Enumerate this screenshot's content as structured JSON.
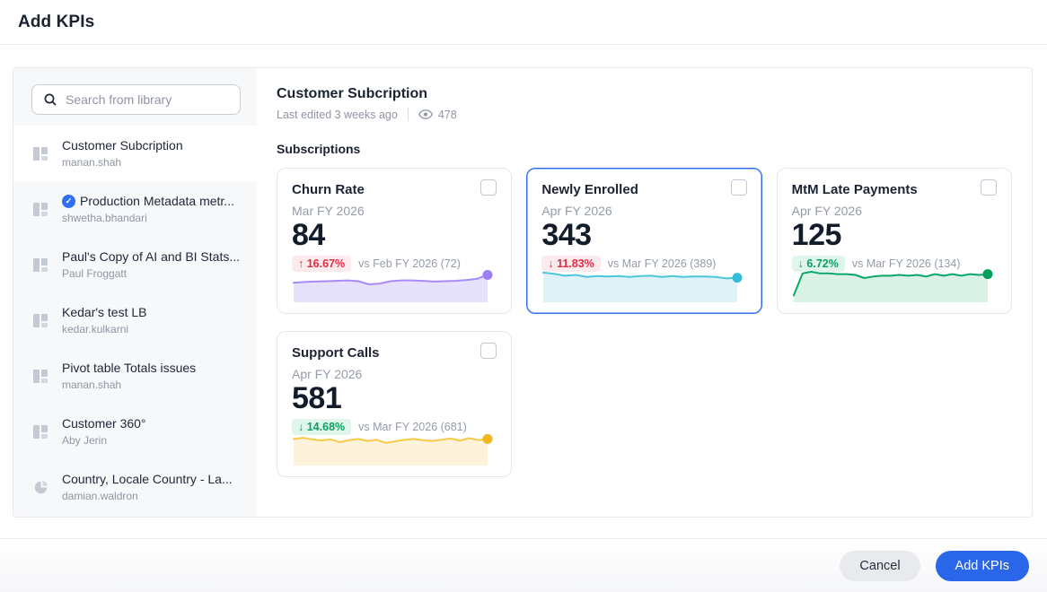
{
  "page": {
    "title": "Add KPIs"
  },
  "sidebar": {
    "search_placeholder": "Search from library",
    "items": [
      {
        "title": "Customer Subcription",
        "owner": "manan.shah",
        "icon": "liveboard",
        "selected": true,
        "verified": false
      },
      {
        "title": "Production Metadata metr...",
        "owner": "shwetha.bhandari",
        "icon": "liveboard",
        "selected": false,
        "verified": true
      },
      {
        "title": "Paul's Copy of AI and BI Stats...",
        "owner": "Paul Froggatt",
        "icon": "liveboard",
        "selected": false,
        "verified": false
      },
      {
        "title": "Kedar's test LB",
        "owner": "kedar.kulkarni",
        "icon": "liveboard",
        "selected": false,
        "verified": false
      },
      {
        "title": "Pivot table Totals issues",
        "owner": "manan.shah",
        "icon": "liveboard",
        "selected": false,
        "verified": false
      },
      {
        "title": "Customer 360°",
        "owner": "Aby Jerin",
        "icon": "liveboard",
        "selected": false,
        "verified": false
      },
      {
        "title": "Country, Locale Country - La...",
        "owner": "damian.waldron",
        "icon": "pie-chart",
        "selected": false,
        "verified": false
      }
    ]
  },
  "main": {
    "title": "Customer Subcription",
    "last_edited": "Last edited 3 weeks ago",
    "views": "478",
    "views_icon": "eye-icon",
    "section": "Subscriptions",
    "cards": [
      {
        "title": "Churn Rate",
        "period": "Mar FY 2026",
        "value": "84",
        "arrow": "↑",
        "delta": "16.67%",
        "delta_color": "red",
        "comparison": "vs Feb FY 2026 (72)",
        "selected": false,
        "checked": false,
        "sparkline": {
          "line": "#a78bfa",
          "fill": "#e7e2fb",
          "dot": "#9f7ff5",
          "points": [
            22,
            21,
            20.5,
            20,
            19.5,
            19,
            20,
            24,
            23,
            20,
            19,
            19,
            19.5,
            20.5,
            20,
            19.5,
            18.5,
            17,
            12
          ]
        }
      },
      {
        "title": "Newly Enrolled",
        "period": "Apr FY 2026",
        "value": "343",
        "arrow": "↓",
        "delta": "11.83%",
        "delta_color": "red",
        "comparison": "vs Mar FY 2026 (389)",
        "selected": true,
        "checked": false,
        "sparkline": {
          "line": "#4cc6dd",
          "fill": "#def2f7",
          "dot": "#36bcd8",
          "points": [
            9,
            10.5,
            13,
            12,
            14.5,
            13.5,
            14,
            13.5,
            14.5,
            13.5,
            13,
            14.5,
            13.5,
            14.5,
            14,
            14,
            14.5,
            16.5,
            15.5
          ]
        }
      },
      {
        "title": "MtM Late Payments",
        "period": "Apr FY 2026",
        "value": "125",
        "arrow": "↓",
        "delta": "6.72%",
        "delta_color": "green",
        "comparison": "vs Mar FY 2026 (134)",
        "selected": false,
        "checked": false,
        "sparkline": {
          "line": "#0ca768",
          "fill": "#daf2e6",
          "dot": "#00a05c",
          "points": [
            38,
            10,
            8,
            10,
            10,
            11,
            11,
            12,
            16,
            14,
            13,
            13,
            12,
            13,
            12,
            14,
            11,
            13,
            11,
            13,
            11,
            12,
            11
          ]
        }
      },
      {
        "title": "Support Calls",
        "period": "Apr FY 2026",
        "value": "581",
        "arrow": "↓",
        "delta": "14.68%",
        "delta_color": "green",
        "comparison": "vs Mar FY 2026 (681)",
        "selected": false,
        "checked": false,
        "sparkline": {
          "line": "#f7c948",
          "fill": "#fdf3da",
          "dot": "#f3b71e",
          "points": [
            13,
            11.5,
            13.5,
            15,
            13.5,
            17,
            14.5,
            13,
            15.5,
            14,
            18,
            16,
            14,
            13,
            14.5,
            15.5,
            14,
            12.5,
            15,
            12,
            14.5,
            13
          ]
        }
      }
    ]
  },
  "footer": {
    "cancel_label": "Cancel",
    "submit_label": "Add KPIs"
  },
  "colors": {
    "accent_blue": "#2a66e9",
    "selected_border": "#2f6ff0",
    "delta_red": "#de2c44",
    "delta_red_bg": "#fcebec",
    "delta_green": "#0b9f62",
    "delta_green_bg": "#e1f6eb",
    "sidebar_bg": "#f7f8fa",
    "border": "#e7e9ee",
    "gray_text": "#8e95a3"
  }
}
